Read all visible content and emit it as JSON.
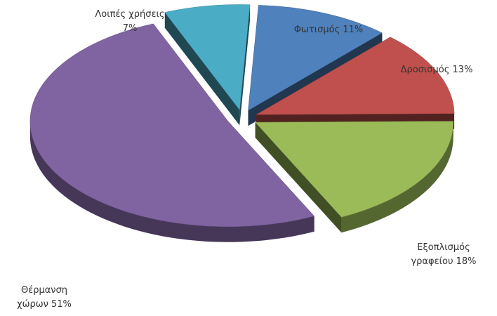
{
  "chart_data": {
    "type": "pie",
    "style": "3d-exploded",
    "title": "",
    "slices": [
      {
        "value": 11,
        "label_lines": [
          "Φωτισμός 11%"
        ],
        "color": "#4f81bd"
      },
      {
        "value": 13,
        "label_lines": [
          "Δροσισμός 13%"
        ],
        "color": "#c0504d"
      },
      {
        "value": 18,
        "label_lines": [
          "Εξοπλισμός",
          "γραφείου 18%"
        ],
        "color": "#9bbb59"
      },
      {
        "value": 51,
        "label_lines": [
          "Θέρμανση",
          "χώρων 51%"
        ],
        "color": "#8064a2"
      },
      {
        "value": 7,
        "label_lines": [
          "Λοιπές χρήσεις",
          "7%"
        ],
        "color": "#4bacc6"
      }
    ]
  }
}
